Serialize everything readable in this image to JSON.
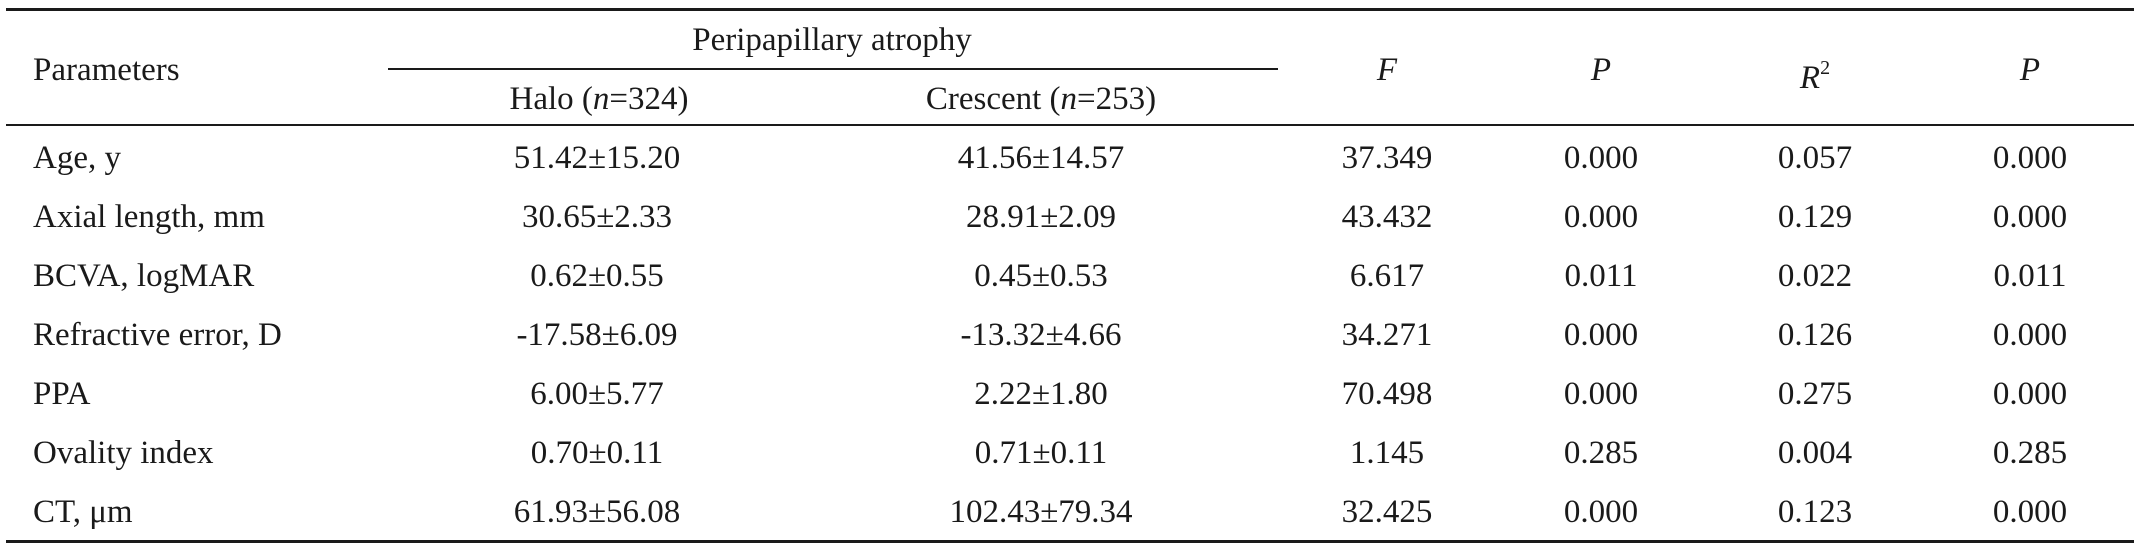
{
  "table": {
    "header": {
      "parameters": "Parameters",
      "group_label": "Peripapillary atrophy",
      "halo_prefix": "Halo (",
      "halo_n": "n",
      "halo_suffix": "=324)",
      "crescent_prefix": "Crescent (",
      "crescent_n": "n",
      "crescent_suffix": "=253)",
      "f": "F",
      "p1": "P",
      "r_base": "R",
      "r_exp": "2",
      "p2": "P"
    },
    "rows": [
      {
        "param": "Age, y",
        "halo": "51.42±15.20",
        "crescent": "41.56±14.57",
        "f": "37.349",
        "p1": "0.000",
        "r2": "0.057",
        "p2": "0.000"
      },
      {
        "param": "Axial length, mm",
        "halo": "30.65±2.33",
        "crescent": "28.91±2.09",
        "f": "43.432",
        "p1": "0.000",
        "r2": "0.129",
        "p2": "0.000"
      },
      {
        "param": "BCVA, logMAR",
        "halo": "0.62±0.55",
        "crescent": "0.45±0.53",
        "f": "6.617",
        "p1": "0.011",
        "r2": "0.022",
        "p2": "0.011"
      },
      {
        "param": "Refractive error, D",
        "halo": "-17.58±6.09",
        "crescent": "-13.32±4.66",
        "f": "34.271",
        "p1": "0.000",
        "r2": "0.126",
        "p2": "0.000"
      },
      {
        "param": "PPA",
        "halo": "6.00±5.77",
        "crescent": "2.22±1.80",
        "f": "70.498",
        "p1": "0.000",
        "r2": "0.275",
        "p2": "0.000"
      },
      {
        "param": "Ovality index",
        "halo": "0.70±0.11",
        "crescent": "0.71±0.11",
        "f": "1.145",
        "p1": "0.285",
        "r2": "0.004",
        "p2": "0.285"
      },
      {
        "param": "CT, μm",
        "halo": "61.93±56.08",
        "crescent": "102.43±79.34",
        "f": "32.425",
        "p1": "0.000",
        "r2": "0.123",
        "p2": "0.000"
      }
    ]
  }
}
